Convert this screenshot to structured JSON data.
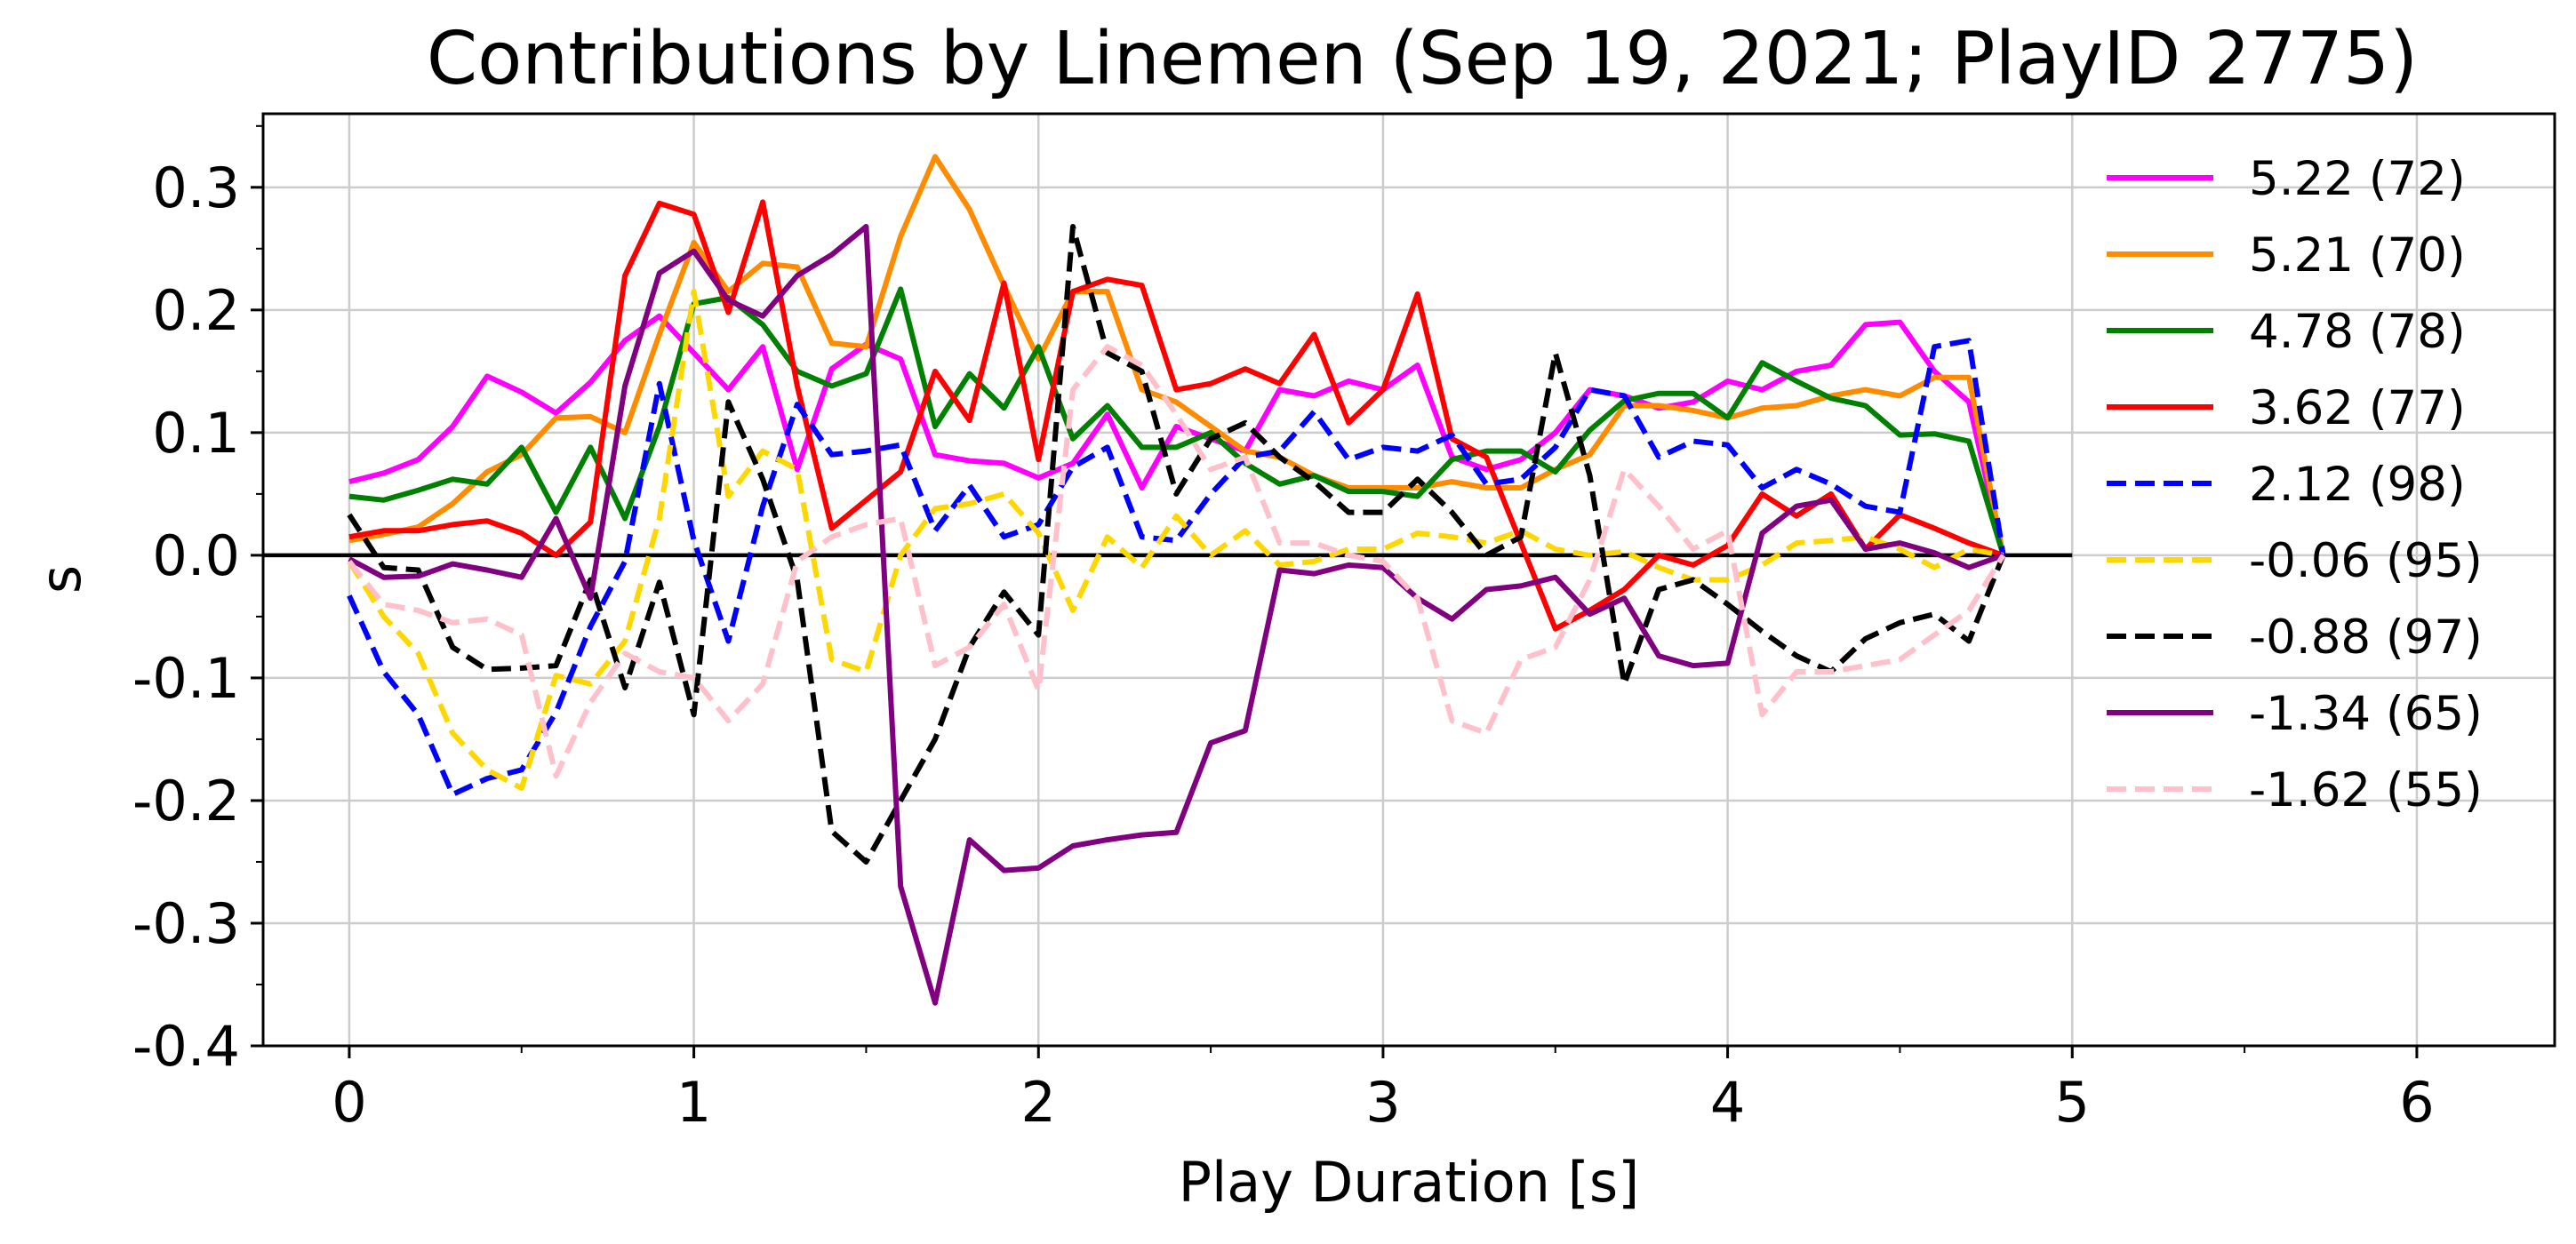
{
  "chart_data": {
    "type": "line",
    "title": "Contributions by Linemen (Sep 19, 2021; PlayID 2775)",
    "xlabel": "Play Duration [s]",
    "ylabel": "s",
    "xlim": [
      -0.25,
      6.4
    ],
    "ylim": [
      -0.4,
      0.36
    ],
    "xticks": [
      0,
      1,
      2,
      3,
      4,
      5,
      6
    ],
    "xtick_labels": [
      "0",
      "1",
      "2",
      "3",
      "4",
      "5",
      "6"
    ],
    "yticks": [
      -0.4,
      -0.3,
      -0.2,
      -0.1,
      0.0,
      0.1,
      0.2,
      0.3
    ],
    "ytick_labels": [
      "-0.4",
      "-0.3",
      "-0.2",
      "-0.1",
      "0.0",
      "0.1",
      "0.2",
      "0.3"
    ],
    "grid": true,
    "legend_position": "upper-right",
    "zero_line": {
      "y": 0,
      "x_range": [
        -0.25,
        5.0
      ],
      "color": "#000000"
    },
    "x": [
      0.0,
      0.1,
      0.2,
      0.3,
      0.4,
      0.5,
      0.6,
      0.7,
      0.8,
      0.9,
      1.0,
      1.1,
      1.2,
      1.3,
      1.4,
      1.5,
      1.6,
      1.7,
      1.8,
      1.9,
      2.0,
      2.1,
      2.2,
      2.3,
      2.4,
      2.5,
      2.6,
      2.7,
      2.8,
      2.9,
      3.0,
      3.1,
      3.2,
      3.3,
      3.4,
      3.5,
      3.6,
      3.7,
      3.8,
      3.9,
      4.0,
      4.1,
      4.2,
      4.3,
      4.4,
      4.5,
      4.6,
      4.7,
      4.8
    ],
    "series": [
      {
        "name": "5.22 (72)",
        "color": "#ff00ff",
        "dash": "solid",
        "values": [
          0.06,
          0.067,
          0.078,
          0.105,
          0.146,
          0.133,
          0.116,
          0.141,
          0.175,
          0.195,
          0.165,
          0.135,
          0.17,
          0.07,
          0.152,
          0.172,
          0.16,
          0.082,
          0.077,
          0.075,
          0.063,
          0.075,
          0.115,
          0.055,
          0.105,
          0.095,
          0.085,
          0.135,
          0.13,
          0.142,
          0.135,
          0.155,
          0.08,
          0.07,
          0.078,
          0.1,
          0.135,
          0.13,
          0.12,
          0.125,
          0.142,
          0.135,
          0.15,
          0.155,
          0.188,
          0.19,
          0.15,
          0.125,
          0.0
        ]
      },
      {
        "name": "5.21 (70)",
        "color": "#ff8c00",
        "dash": "solid",
        "values": [
          0.012,
          0.017,
          0.023,
          0.042,
          0.068,
          0.082,
          0.112,
          0.113,
          0.1,
          0.18,
          0.255,
          0.215,
          0.238,
          0.235,
          0.173,
          0.17,
          0.26,
          0.325,
          0.282,
          0.22,
          0.16,
          0.215,
          0.215,
          0.135,
          0.125,
          0.105,
          0.085,
          0.08,
          0.065,
          0.055,
          0.055,
          0.055,
          0.06,
          0.055,
          0.055,
          0.07,
          0.082,
          0.122,
          0.122,
          0.118,
          0.112,
          0.12,
          0.122,
          0.13,
          0.135,
          0.13,
          0.145,
          0.145,
          0.0
        ]
      },
      {
        "name": "4.78 (78)",
        "color": "#008000",
        "dash": "solid",
        "values": [
          0.048,
          0.045,
          0.053,
          0.062,
          0.058,
          0.088,
          0.035,
          0.088,
          0.03,
          0.105,
          0.205,
          0.21,
          0.188,
          0.15,
          0.138,
          0.148,
          0.217,
          0.105,
          0.148,
          0.12,
          0.17,
          0.095,
          0.122,
          0.088,
          0.088,
          0.1,
          0.075,
          0.058,
          0.065,
          0.052,
          0.052,
          0.048,
          0.078,
          0.085,
          0.085,
          0.068,
          0.102,
          0.126,
          0.132,
          0.132,
          0.112,
          0.157,
          0.142,
          0.128,
          0.122,
          0.098,
          0.099,
          0.093,
          0.0
        ]
      },
      {
        "name": "3.62 (77)",
        "color": "#ff0000",
        "dash": "solid",
        "values": [
          0.015,
          0.02,
          0.02,
          0.025,
          0.028,
          0.018,
          0.0,
          0.027,
          0.228,
          0.287,
          0.278,
          0.198,
          0.288,
          0.138,
          0.022,
          0.045,
          0.068,
          0.15,
          0.11,
          0.222,
          0.078,
          0.215,
          0.225,
          0.22,
          0.135,
          0.14,
          0.152,
          0.14,
          0.18,
          0.108,
          0.135,
          0.213,
          0.095,
          0.08,
          0.01,
          -0.06,
          -0.045,
          -0.028,
          0.0,
          -0.008,
          0.008,
          0.05,
          0.032,
          0.05,
          0.005,
          0.033,
          0.022,
          0.01,
          0.0
        ]
      },
      {
        "name": "2.12 (98)",
        "color": "#0000ff",
        "dash": "dashed",
        "values": [
          -0.033,
          -0.095,
          -0.13,
          -0.195,
          -0.182,
          -0.175,
          -0.128,
          -0.058,
          -0.005,
          0.14,
          0.012,
          -0.07,
          0.04,
          0.123,
          0.082,
          0.085,
          0.09,
          0.02,
          0.057,
          0.015,
          0.025,
          0.072,
          0.088,
          0.015,
          0.012,
          0.05,
          0.08,
          0.085,
          0.117,
          0.078,
          0.088,
          0.085,
          0.098,
          0.058,
          0.062,
          0.088,
          0.135,
          0.13,
          0.08,
          0.093,
          0.09,
          0.055,
          0.07,
          0.058,
          0.04,
          0.035,
          0.17,
          0.175,
          0.0
        ]
      },
      {
        "name": "-0.06 (95)",
        "color": "#ffd700",
        "dash": "dashed",
        "values": [
          -0.005,
          -0.05,
          -0.08,
          -0.145,
          -0.175,
          -0.19,
          -0.098,
          -0.105,
          -0.07,
          0.03,
          0.215,
          0.048,
          0.085,
          0.07,
          -0.085,
          -0.095,
          0.0,
          0.038,
          0.042,
          0.05,
          0.018,
          -0.045,
          0.015,
          -0.01,
          0.032,
          0.0,
          0.02,
          -0.008,
          -0.005,
          0.005,
          0.005,
          0.018,
          0.015,
          0.01,
          0.02,
          0.005,
          0.0,
          0.003,
          -0.01,
          -0.02,
          -0.02,
          -0.008,
          0.01,
          0.012,
          0.015,
          0.005,
          -0.01,
          0.005,
          0.0
        ]
      },
      {
        "name": "-0.88 (97)",
        "color": "#000000",
        "dash": "dashed",
        "values": [
          0.033,
          -0.01,
          -0.012,
          -0.075,
          -0.093,
          -0.092,
          -0.09,
          -0.02,
          -0.108,
          -0.022,
          -0.13,
          0.125,
          0.062,
          -0.02,
          -0.225,
          -0.25,
          -0.2,
          -0.15,
          -0.075,
          -0.03,
          -0.065,
          0.268,
          0.165,
          0.15,
          0.05,
          0.095,
          0.108,
          0.08,
          0.06,
          0.035,
          0.035,
          0.062,
          0.035,
          0.0,
          0.015,
          0.165,
          0.065,
          -0.105,
          -0.028,
          -0.02,
          -0.04,
          -0.062,
          -0.082,
          -0.095,
          -0.068,
          -0.055,
          -0.048,
          -0.07,
          0.0
        ]
      },
      {
        "name": "-1.34 (65)",
        "color": "#800080",
        "dash": "solid",
        "values": [
          -0.003,
          -0.018,
          -0.017,
          -0.007,
          -0.012,
          -0.018,
          0.03,
          -0.035,
          0.138,
          0.23,
          0.248,
          0.208,
          0.195,
          0.228,
          0.245,
          0.268,
          -0.27,
          -0.365,
          -0.232,
          -0.257,
          -0.255,
          -0.237,
          -0.232,
          -0.228,
          -0.226,
          -0.153,
          -0.143,
          -0.012,
          -0.015,
          -0.008,
          -0.01,
          -0.035,
          -0.052,
          -0.028,
          -0.025,
          -0.018,
          -0.048,
          -0.035,
          -0.082,
          -0.09,
          -0.088,
          0.018,
          0.04,
          0.045,
          0.005,
          0.01,
          0.002,
          -0.01,
          0.0
        ]
      },
      {
        "name": "-1.62 (55)",
        "color": "#ffc0cb",
        "dash": "dashed",
        "values": [
          -0.005,
          -0.04,
          -0.045,
          -0.055,
          -0.052,
          -0.065,
          -0.18,
          -0.12,
          -0.08,
          -0.095,
          -0.1,
          -0.135,
          -0.105,
          -0.005,
          0.015,
          0.025,
          0.03,
          -0.09,
          -0.075,
          -0.04,
          -0.11,
          0.135,
          0.17,
          0.155,
          0.115,
          0.07,
          0.08,
          0.01,
          0.01,
          0.0,
          -0.005,
          -0.035,
          -0.135,
          -0.145,
          -0.085,
          -0.075,
          -0.02,
          0.07,
          0.04,
          0.005,
          0.02,
          -0.13,
          -0.095,
          -0.095,
          -0.09,
          -0.085,
          -0.065,
          -0.045,
          0.0
        ]
      }
    ]
  }
}
